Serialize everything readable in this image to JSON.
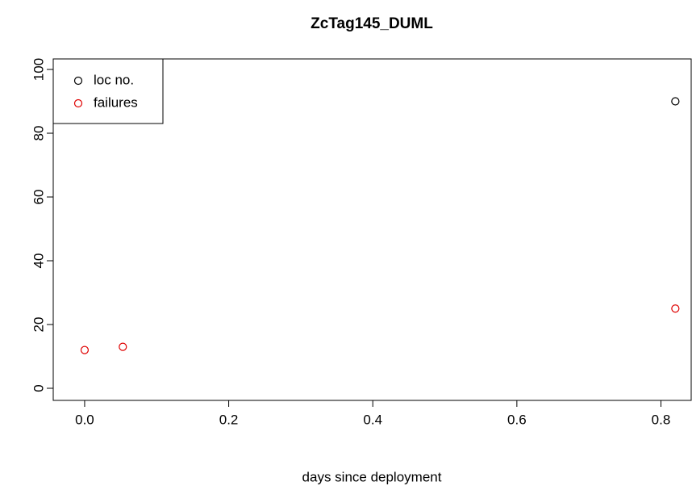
{
  "chart_data": {
    "type": "scatter",
    "title": "ZcTag145_DUML",
    "xlabel": "days since deployment",
    "series": [
      {
        "name": "loc no.",
        "color": "#000000",
        "x": [
          0.82
        ],
        "values": [
          90
        ]
      },
      {
        "name": "failures",
        "color": "#df0000",
        "x": [
          0,
          0.053,
          0.82
        ],
        "values": [
          12,
          13,
          25
        ]
      }
    ],
    "xlim": [
      -0.0436,
      0.842
    ],
    "xticks": [
      {
        "value": 0,
        "label": "0.0"
      },
      0.2,
      0.4,
      0.6,
      0.8
    ],
    "ylim": [
      -3.8,
      103.3
    ],
    "yticks": [
      0,
      20,
      40,
      60,
      80,
      100
    ],
    "legend": "top-left",
    "grid": false
  }
}
